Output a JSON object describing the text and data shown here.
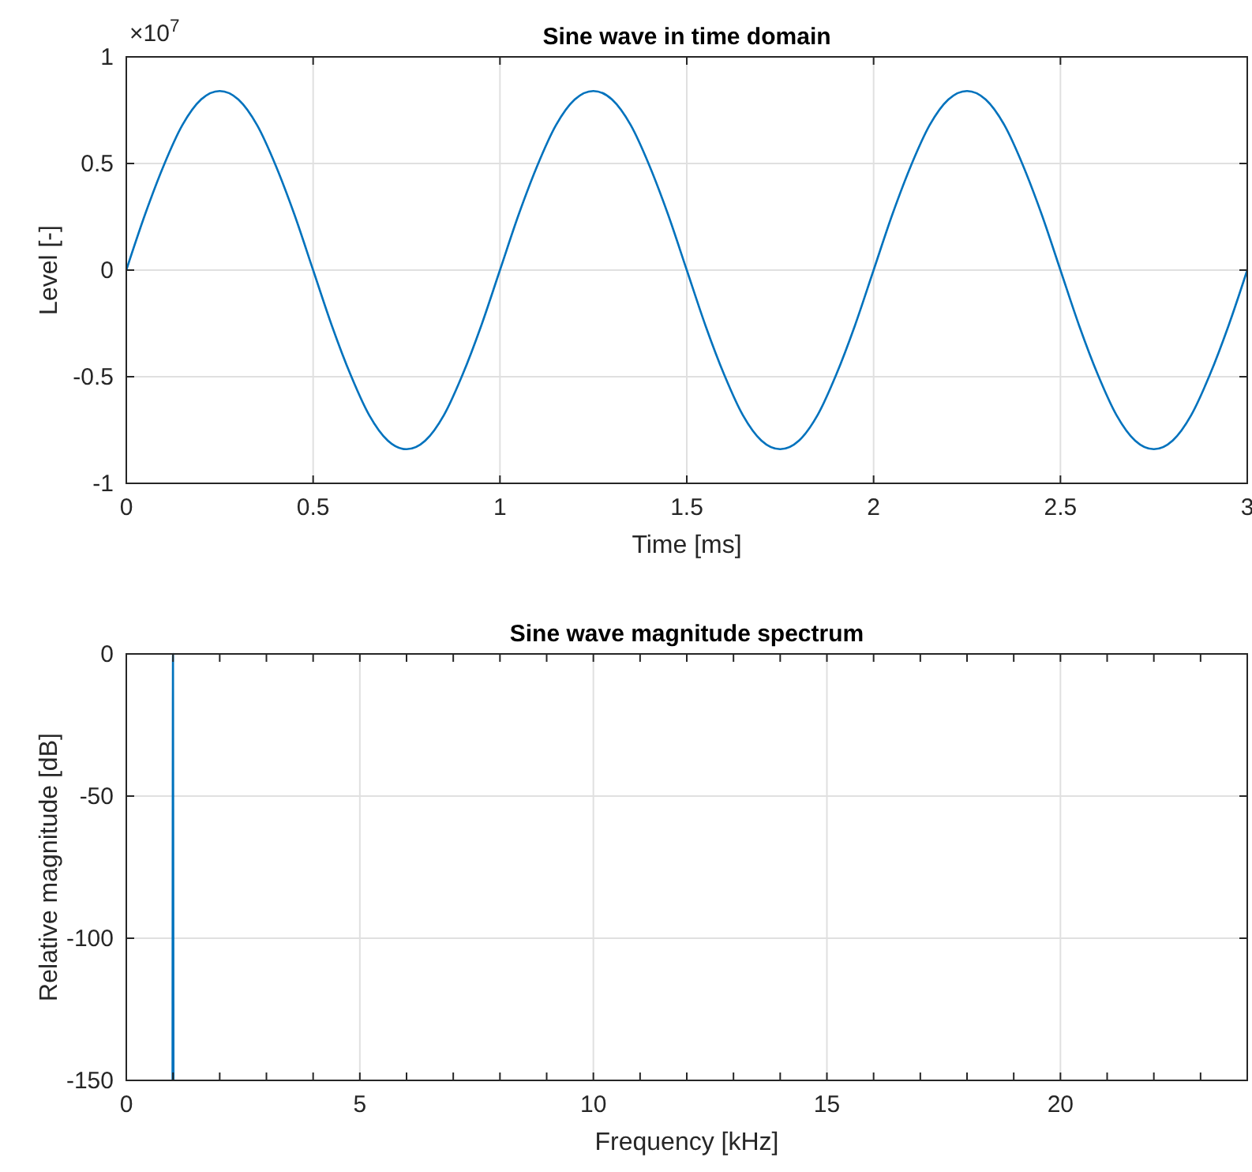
{
  "chart_data": [
    {
      "type": "line",
      "title": "Sine wave in time domain",
      "xlabel": "Time [ms]",
      "ylabel": "Level [-]",
      "annotations": [
        "×10$^{7}$"
      ],
      "x": [
        0,
        0.05,
        0.1,
        0.15,
        0.2,
        0.25,
        0.3,
        0.35,
        0.4,
        0.45,
        0.5,
        0.55,
        0.6,
        0.65,
        0.7,
        0.75,
        0.8,
        0.85,
        0.9,
        0.95,
        1,
        1.05,
        1.1,
        1.15,
        1.2,
        1.25,
        1.3,
        1.35,
        1.4,
        1.45,
        1.5,
        1.55,
        1.6,
        1.65,
        1.7,
        1.75,
        1.8,
        1.85,
        1.9,
        1.95,
        2,
        2.05,
        2.1,
        2.15,
        2.2,
        2.25,
        2.3,
        2.35,
        2.4,
        2.45,
        2.5,
        2.55,
        2.6,
        2.65,
        2.7,
        2.75,
        2.8,
        2.85,
        2.9,
        2.95,
        3
      ],
      "series": [
        {
          "color": "#0072bd",
          "values": [
            0,
            0.26,
            0.49,
            0.68,
            0.8,
            0.84,
            0.8,
            0.68,
            0.49,
            0.26,
            0,
            -0.26,
            -0.49,
            -0.68,
            -0.8,
            -0.84,
            -0.8,
            -0.68,
            -0.49,
            -0.26,
            0,
            0.26,
            0.49,
            0.68,
            0.8,
            0.84,
            0.8,
            0.68,
            0.49,
            0.26,
            0,
            -0.26,
            -0.49,
            -0.68,
            -0.8,
            -0.84,
            -0.8,
            -0.68,
            -0.49,
            -0.26,
            0,
            0.26,
            0.49,
            0.68,
            0.8,
            0.84,
            0.8,
            0.68,
            0.49,
            0.26,
            0,
            -0.26,
            -0.49,
            -0.68,
            -0.8,
            -0.84,
            -0.8,
            -0.68,
            -0.49,
            -0.26,
            0
          ]
        }
      ],
      "xlim": [
        0,
        3
      ],
      "xticks": [
        0,
        0.5,
        1,
        1.5,
        2,
        2.5,
        3
      ],
      "ylim": [
        -1,
        1
      ],
      "yticks": [
        -1,
        -0.5,
        0,
        0.5,
        1
      ],
      "grid": true
    },
    {
      "type": "line",
      "title": "Sine wave magnitude spectrum",
      "xlabel": "Frequency [kHz]",
      "ylabel": "Relative magnitude [dB]",
      "x": [
        0.99,
        1,
        1.01
      ],
      "series": [
        {
          "color": "#0072bd",
          "values": [
            -150,
            0,
            -150
          ]
        }
      ],
      "xlim": [
        0,
        24
      ],
      "xticks": [
        0,
        {
          "value": 1,
          "label": null
        },
        {
          "value": 2,
          "label": null
        },
        {
          "value": 3,
          "label": null
        },
        {
          "value": 4,
          "label": null
        },
        5,
        {
          "value": 6,
          "label": null
        },
        {
          "value": 7,
          "label": null
        },
        {
          "value": 8,
          "label": null
        },
        {
          "value": 9,
          "label": null
        },
        10,
        {
          "value": 11,
          "label": null
        },
        {
          "value": 12,
          "label": null
        },
        {
          "value": 13,
          "label": null
        },
        {
          "value": 14,
          "label": null
        },
        15,
        {
          "value": 16,
          "label": null
        },
        {
          "value": 17,
          "label": null
        },
        {
          "value": 18,
          "label": null
        },
        {
          "value": 19,
          "label": null
        },
        20,
        {
          "value": 21,
          "label": null
        },
        {
          "value": 22,
          "label": null
        },
        {
          "value": 23,
          "label": null
        },
        {
          "value": 24,
          "label": null
        }
      ],
      "ylim": [
        -150,
        0
      ],
      "yticks": [
        -150,
        -100,
        -50,
        0
      ],
      "grid": true
    }
  ]
}
